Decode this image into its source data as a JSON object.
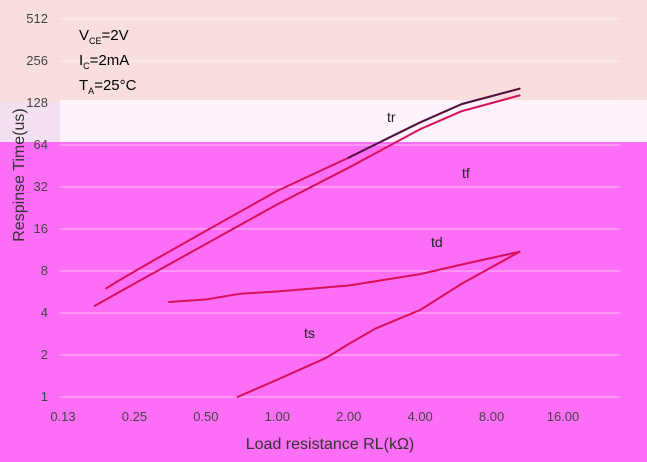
{
  "chart_data": {
    "type": "line",
    "title": "",
    "xlabel": "Load resistance RL(kΩ)",
    "ylabel": "Respinse Time(us)",
    "x_scale": "log2",
    "y_scale": "log2",
    "xlim": [
      0.13,
      16.0
    ],
    "ylim": [
      1,
      512
    ],
    "x_ticks": [
      "0.13",
      "0.25",
      "0.50",
      "1.00",
      "2.00",
      "4.00",
      "8.00",
      "16.00"
    ],
    "x_tick_values": [
      0.125,
      0.25,
      0.5,
      1,
      2,
      4,
      8,
      16
    ],
    "y_ticks": [
      "1",
      "2",
      "4",
      "8",
      "16",
      "32",
      "64",
      "128",
      "256",
      "512"
    ],
    "y_tick_values": [
      1,
      2,
      4,
      8,
      16,
      32,
      64,
      128,
      256,
      512
    ],
    "conditions": {
      "vce_main": "V",
      "vce_sub": "CE",
      "vce_value": "=2V",
      "ic_main": "I",
      "ic_sub": "C",
      "ic_value": "=2mA",
      "ta_main": "T",
      "ta_sub": "A",
      "ta_value": "=25°C"
    },
    "colors": {
      "upper_band": "#f9dede",
      "lower_band": "#fd6ef6",
      "series_line": "#d8105c",
      "tr_upper": "#4a1640"
    },
    "series": [
      {
        "name": "tr",
        "x": [
          0.19,
          0.22,
          0.3,
          0.5,
          1.0,
          2.0,
          4.0,
          6.0,
          10.5
        ],
        "y": [
          6.0,
          7.0,
          9.5,
          15.5,
          30.0,
          52.0,
          93.0,
          126.0,
          162.0
        ]
      },
      {
        "name": "tf",
        "x": [
          0.17,
          0.25,
          0.5,
          1.0,
          2.0,
          4.0,
          6.0,
          10.5
        ],
        "y": [
          4.5,
          6.5,
          12.5,
          24.0,
          44.0,
          83.0,
          112.0,
          145.0
        ]
      },
      {
        "name": "td",
        "x": [
          0.35,
          0.5,
          0.7,
          1.0,
          2.0,
          4.0,
          6.0,
          10.5
        ],
        "y": [
          4.8,
          5.0,
          5.5,
          5.7,
          6.3,
          7.6,
          8.9,
          11.0
        ]
      },
      {
        "name": "ts",
        "x": [
          0.68,
          1.0,
          1.6,
          2.0,
          2.6,
          4.0,
          6.0,
          10.5
        ],
        "y": [
          1.0,
          1.33,
          1.9,
          2.4,
          3.1,
          4.2,
          6.5,
          11.0
        ]
      }
    ]
  }
}
